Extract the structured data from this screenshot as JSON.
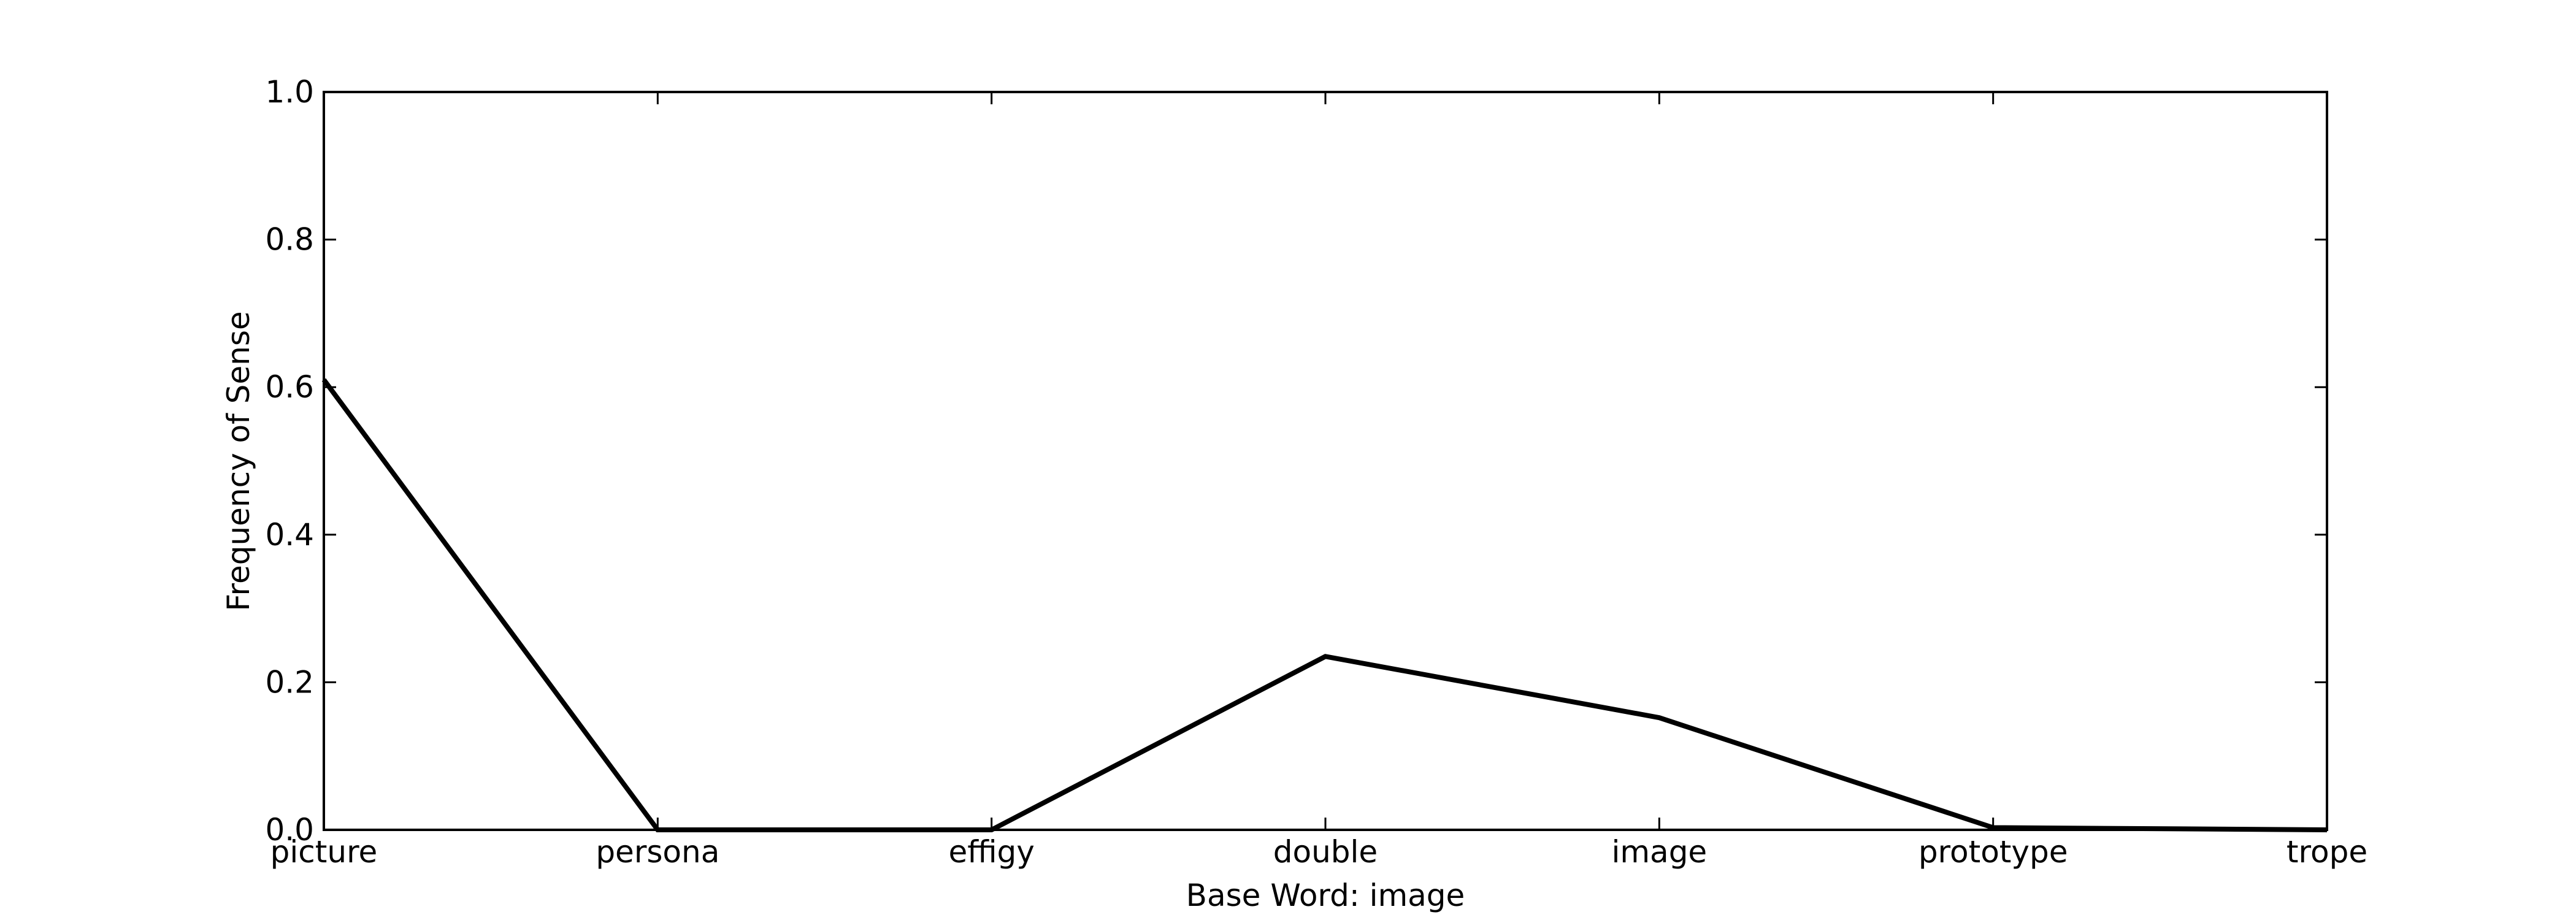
{
  "chart_data": {
    "type": "line",
    "title": "",
    "xlabel": "Base Word: image",
    "ylabel": "Frequency of Sense",
    "categories": [
      "picture",
      "persona",
      "effigy",
      "double",
      "image",
      "prototype",
      "trope"
    ],
    "series": [
      {
        "values": [
          0.61,
          0.0,
          0.0,
          0.235,
          0.152,
          0.003,
          0.0
        ],
        "color": "#000000"
      }
    ],
    "ylim": [
      0.0,
      1.0
    ],
    "yticks": [
      "0.0",
      "0.2",
      "0.4",
      "0.6",
      "0.8",
      "1.0"
    ],
    "grid": false
  }
}
